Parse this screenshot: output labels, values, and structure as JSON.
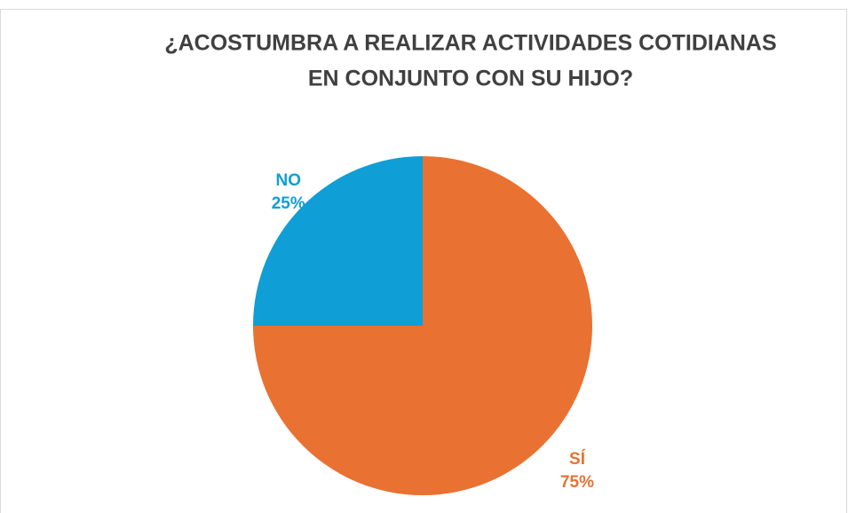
{
  "chart_data": {
    "type": "pie",
    "title": [
      "¿ACOSTUMBRA A REALIZAR ACTIVIDADES COTIDIANAS",
      "EN CONJUNTO CON SU HIJO?"
    ],
    "categories": [
      "SÍ",
      "NO"
    ],
    "values": [
      75,
      25
    ],
    "value_labels": [
      "75%",
      "25%"
    ],
    "colors": [
      "#e97132",
      "#0f9ed5"
    ]
  }
}
